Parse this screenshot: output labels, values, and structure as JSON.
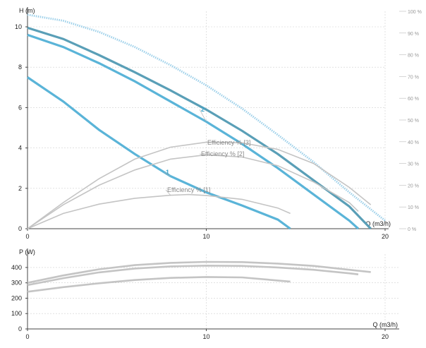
{
  "chart_data": [
    {
      "type": "line",
      "name": "head-chart",
      "xlabel": "Q (m3/h)",
      "ylabel": "H (m)",
      "xlim": [
        0,
        20
      ],
      "ylim": [
        0,
        10
      ],
      "y2lim": [
        0,
        100
      ],
      "y2_unit": "%",
      "xticks": [
        "0",
        "10",
        "20"
      ],
      "yticks": [
        "0",
        "2",
        "4",
        "6",
        "8",
        "10"
      ],
      "y2ticks": [
        "0 %",
        "10 %",
        "20 %",
        "30 %",
        "40 %",
        "50 %",
        "60 %",
        "70 %",
        "80 %",
        "90 %",
        "100 %"
      ],
      "grid": true,
      "series": [
        {
          "label": "1",
          "kind": "head",
          "color": "#5ab4d8",
          "points": [
            [
              0,
              7.5
            ],
            [
              2,
              6.3
            ],
            [
              4,
              4.9
            ],
            [
              6,
              3.7
            ],
            [
              8,
              2.6
            ],
            [
              10,
              1.8
            ],
            [
              12,
              1.15
            ],
            [
              14,
              0.45
            ],
            [
              14.7,
              0
            ]
          ]
        },
        {
          "label": "2",
          "kind": "head",
          "color": "#5ab4d8",
          "points": [
            [
              0,
              9.6
            ],
            [
              2,
              9.0
            ],
            [
              4,
              8.2
            ],
            [
              6,
              7.3
            ],
            [
              8,
              6.3
            ],
            [
              10,
              5.3
            ],
            [
              12,
              4.2
            ],
            [
              14,
              3.0
            ],
            [
              16,
              1.7
            ],
            [
              18,
              0.4
            ],
            [
              18.5,
              0
            ]
          ]
        },
        {
          "label": "",
          "kind": "head",
          "color": "#5a9fb7",
          "points": [
            [
              0,
              9.95
            ],
            [
              2,
              9.4
            ],
            [
              4,
              8.6
            ],
            [
              6,
              7.75
            ],
            [
              8,
              6.85
            ],
            [
              10,
              5.9
            ],
            [
              12,
              4.85
            ],
            [
              14,
              3.7
            ],
            [
              16,
              2.4
            ],
            [
              18,
              1.1
            ],
            [
              19.2,
              0
            ]
          ]
        },
        {
          "label": "",
          "kind": "head-max",
          "color": "#9fd1ea",
          "dashed": true,
          "points": [
            [
              0,
              10.6
            ],
            [
              2,
              10.3
            ],
            [
              4,
              9.75
            ],
            [
              6,
              9.0
            ],
            [
              8,
              8.1
            ],
            [
              10,
              7.1
            ],
            [
              12,
              5.95
            ],
            [
              14,
              4.65
            ],
            [
              16,
              3.3
            ],
            [
              18,
              1.8
            ],
            [
              20,
              0.4
            ]
          ]
        },
        {
          "label": "Efficiency % [1]",
          "kind": "efficiency",
          "color": "#c4c4c4",
          "points_pct": [
            [
              0,
              0
            ],
            [
              2,
              7
            ],
            [
              4,
              11.3
            ],
            [
              6,
              14
            ],
            [
              8,
              15.4
            ],
            [
              9,
              15.7
            ],
            [
              10,
              15.3
            ],
            [
              12,
              13.5
            ],
            [
              14,
              9.5
            ],
            [
              14.7,
              7
            ]
          ]
        },
        {
          "label": "Efficiency % [2]",
          "kind": "efficiency",
          "color": "#c4c4c4",
          "points_pct": [
            [
              0,
              0
            ],
            [
              2,
              11
            ],
            [
              4,
              20
            ],
            [
              6,
              27
            ],
            [
              8,
              32
            ],
            [
              10,
              34
            ],
            [
              12,
              33
            ],
            [
              14,
              29
            ],
            [
              16,
              21.5
            ],
            [
              18,
              12
            ],
            [
              18.5,
              8
            ]
          ]
        },
        {
          "label": "Efficiency % [3]",
          "kind": "efficiency",
          "color": "#c4c4c4",
          "points_pct": [
            [
              0,
              0
            ],
            [
              2,
              12
            ],
            [
              4,
              23
            ],
            [
              6,
              32
            ],
            [
              8,
              37.5
            ],
            [
              10,
              39.8
            ],
            [
              12,
              39.5
            ],
            [
              14,
              36.5
            ],
            [
              16,
              30
            ],
            [
              18,
              19
            ],
            [
              19.2,
              11
            ]
          ]
        }
      ]
    },
    {
      "type": "line",
      "name": "power-chart",
      "xlabel": "Q (m3/h)",
      "ylabel": "P (W)",
      "xlim": [
        0,
        20
      ],
      "ylim": [
        0,
        450
      ],
      "xticks": [
        "0",
        "10",
        "20"
      ],
      "yticks": [
        "0",
        "100",
        "200",
        "300",
        "400"
      ],
      "grid": true,
      "series": [
        {
          "label": "",
          "color": "#c4c4c4",
          "points": [
            [
              0,
              242
            ],
            [
              2,
              272
            ],
            [
              4,
              297
            ],
            [
              6,
              318
            ],
            [
              8,
              332
            ],
            [
              10,
              338
            ],
            [
              12,
              335
            ],
            [
              14,
              315
            ],
            [
              14.7,
              308
            ]
          ]
        },
        {
          "label": "",
          "color": "#c4c4c4",
          "points": [
            [
              0,
              285
            ],
            [
              2,
              330
            ],
            [
              4,
              368
            ],
            [
              6,
              393
            ],
            [
              8,
              407
            ],
            [
              10,
              412
            ],
            [
              12,
              410
            ],
            [
              14,
              400
            ],
            [
              16,
              385
            ],
            [
              18,
              362
            ],
            [
              18.5,
              355
            ]
          ]
        },
        {
          "label": "",
          "color": "#c4c4c4",
          "points": [
            [
              0,
              300
            ],
            [
              2,
              348
            ],
            [
              4,
              388
            ],
            [
              6,
              415
            ],
            [
              8,
              430
            ],
            [
              10,
              436
            ],
            [
              12,
              435
            ],
            [
              14,
              425
            ],
            [
              16,
              410
            ],
            [
              18,
              385
            ],
            [
              19.2,
              370
            ]
          ]
        }
      ]
    }
  ]
}
